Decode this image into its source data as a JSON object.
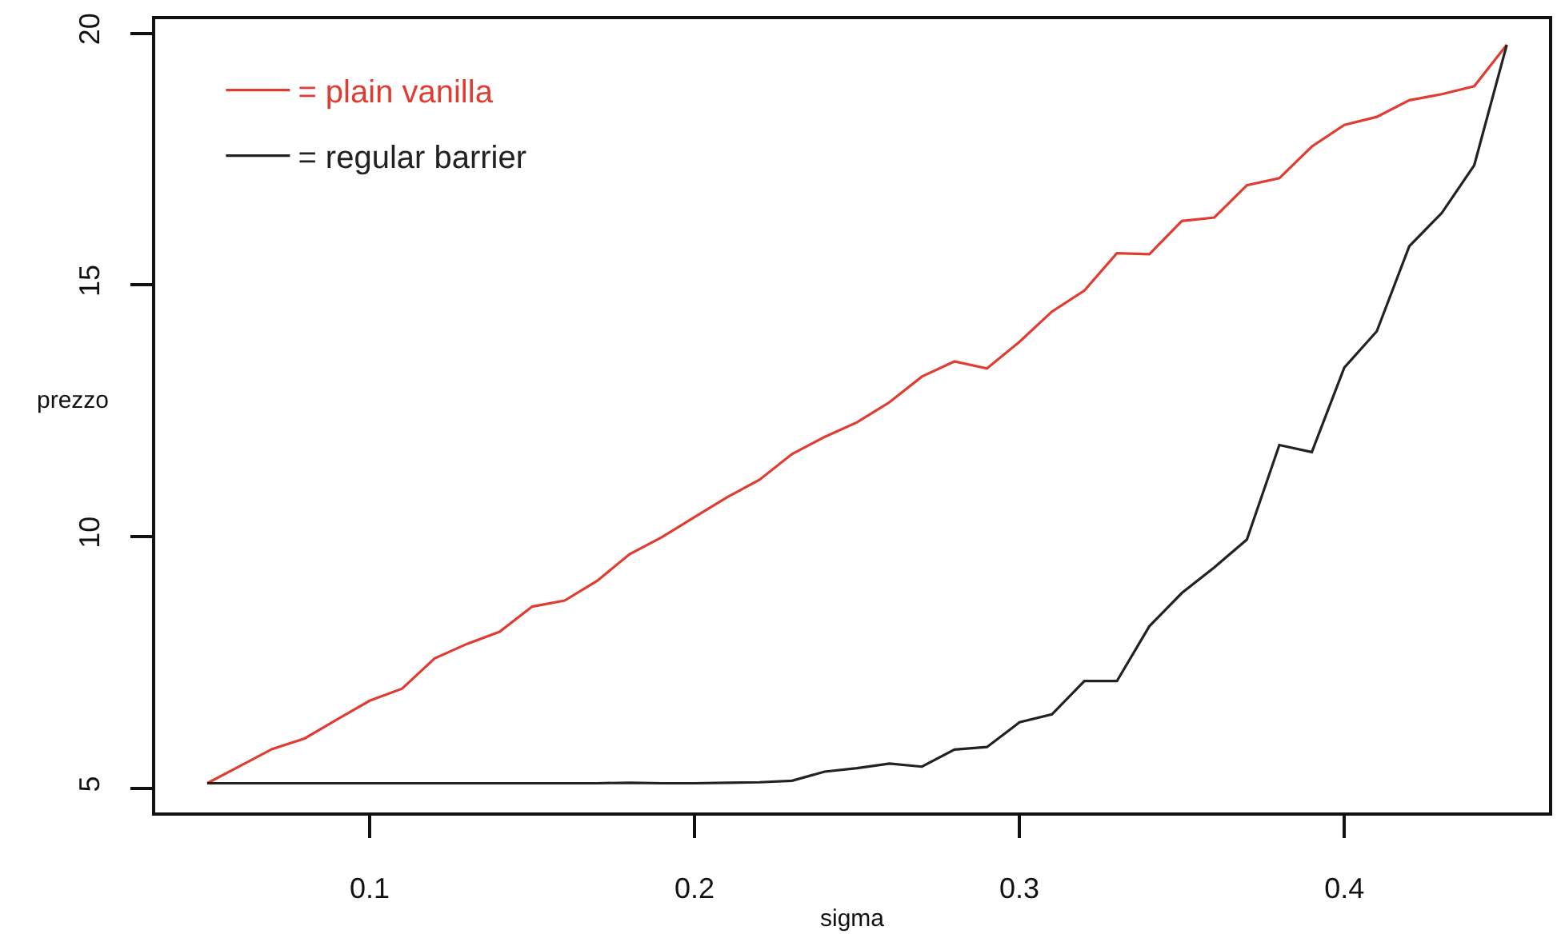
{
  "chart_data": {
    "type": "line",
    "xlabel": "sigma",
    "ylabel": "prezzo",
    "x": [
      0.05,
      0.06,
      0.07,
      0.08,
      0.09,
      0.1,
      0.11,
      0.12,
      0.13,
      0.14,
      0.15,
      0.16,
      0.17,
      0.18,
      0.19,
      0.2,
      0.21,
      0.22,
      0.23,
      0.24,
      0.25,
      0.26,
      0.27,
      0.28,
      0.29,
      0.3,
      0.31,
      0.32,
      0.33,
      0.34,
      0.35,
      0.36,
      0.37,
      0.38,
      0.39,
      0.4,
      0.41,
      0.42,
      0.43,
      0.44,
      0.45
    ],
    "series": [
      {
        "name": "= plain vanilla",
        "color": "#e03c31",
        "values": [
          5.1,
          5.44,
          5.78,
          5.99,
          6.37,
          6.74,
          6.98,
          7.58,
          7.87,
          8.11,
          8.61,
          8.73,
          9.12,
          9.65,
          9.99,
          10.39,
          10.78,
          11.13,
          11.64,
          11.98,
          12.27,
          12.67,
          13.18,
          13.48,
          13.34,
          13.87,
          14.47,
          14.89,
          15.63,
          15.61,
          16.27,
          16.34,
          16.98,
          17.12,
          17.75,
          18.18,
          18.34,
          18.67,
          18.79,
          18.95,
          19.77
        ]
      },
      {
        "name": "= regular barrier",
        "color": "#222222",
        "values": [
          5.1,
          5.1,
          5.1,
          5.1,
          5.1,
          5.1,
          5.1,
          5.1,
          5.1,
          5.1,
          5.1,
          5.1,
          5.1,
          5.11,
          5.1,
          5.1,
          5.11,
          5.12,
          5.15,
          5.33,
          5.4,
          5.49,
          5.43,
          5.77,
          5.82,
          6.31,
          6.47,
          7.13,
          7.13,
          8.22,
          8.88,
          9.39,
          9.94,
          11.82,
          11.68,
          13.36,
          14.08,
          15.77,
          16.43,
          17.38,
          19.77
        ]
      }
    ],
    "xlim": [
      0.034,
      0.463
    ],
    "ylim": [
      4.52,
      20.28
    ],
    "xticks": [
      0.1,
      0.2,
      0.3,
      0.4
    ],
    "yticks": [
      5,
      10,
      15,
      20
    ],
    "grid": false,
    "legend": "top left",
    "marker": "none",
    "line_style": "solid"
  }
}
